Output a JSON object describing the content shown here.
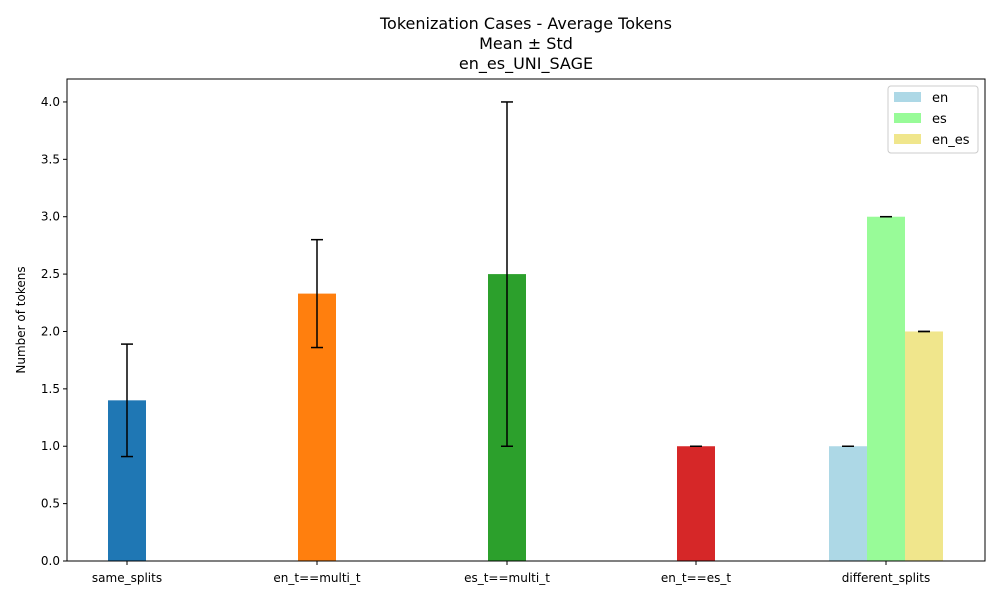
{
  "chart_data": {
    "type": "bar",
    "title_lines": [
      "Tokenization Cases - Average Tokens",
      "Mean ± Std",
      "en_es_UNI_SAGE"
    ],
    "xlabel": "",
    "ylabel": "Number of tokens",
    "ylim": [
      0,
      4.2
    ],
    "yticks": [
      "0.0",
      "0.5",
      "1.0",
      "1.5",
      "2.0",
      "2.5",
      "3.0",
      "3.5",
      "4.0"
    ],
    "categories": [
      "same_splits",
      "en_t==multi_t",
      "es_t==multi_t",
      "en_t==es_t",
      "different_splits"
    ],
    "single_bars": [
      {
        "category": "same_splits",
        "mean": 1.4,
        "std": 0.49,
        "color": "#1f77b4"
      },
      {
        "category": "en_t==multi_t",
        "mean": 2.33,
        "std": 0.47,
        "color": "#ff7f0e"
      },
      {
        "category": "es_t==multi_t",
        "mean": 2.5,
        "std": 1.5,
        "color": "#2ca02c"
      },
      {
        "category": "en_t==es_t",
        "mean": 1.0,
        "std": 0.0,
        "color": "#d62728"
      }
    ],
    "series": [
      {
        "name": "en",
        "category": "different_splits",
        "mean": 1.0,
        "std": 0.0,
        "color": "#add8e6"
      },
      {
        "name": "es",
        "category": "different_splits",
        "mean": 3.0,
        "std": 0.0,
        "color": "#98fb98"
      },
      {
        "name": "en_es",
        "category": "different_splits",
        "mean": 2.0,
        "std": 0.0,
        "color": "#f0e68c"
      }
    ],
    "legend": {
      "placement": "top-right",
      "entries": [
        "en",
        "es",
        "en_es"
      ]
    },
    "grid": false
  }
}
